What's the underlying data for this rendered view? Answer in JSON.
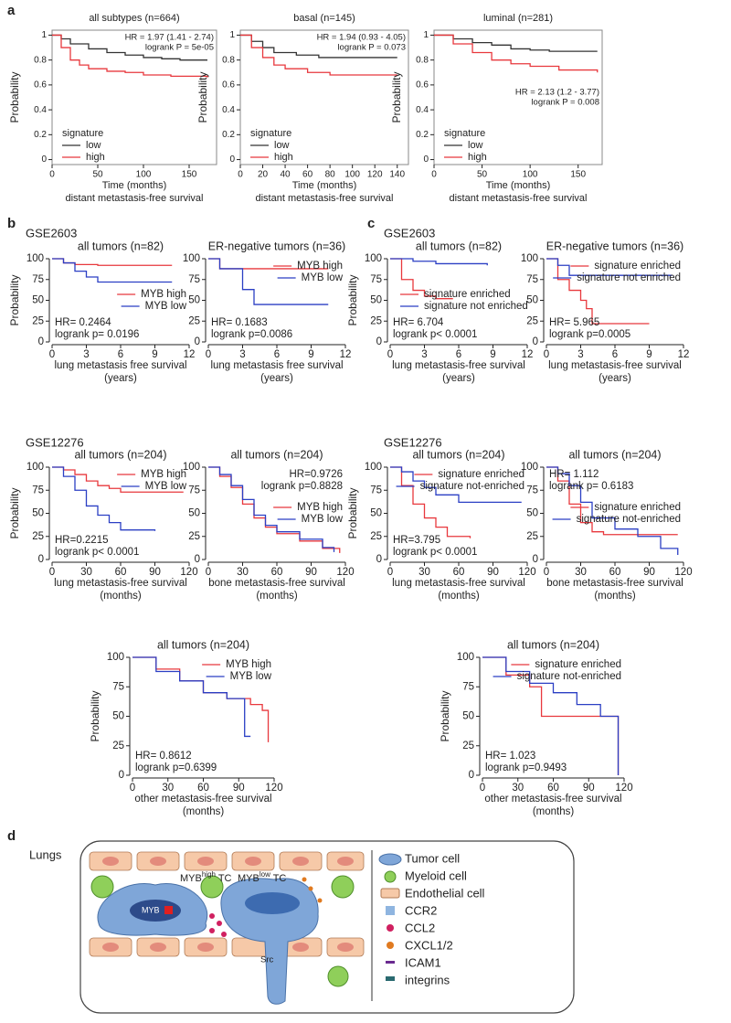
{
  "figure": {
    "panels": [
      "a",
      "b",
      "c",
      "d"
    ],
    "groups": [
      "GSE2603",
      "GSE12276",
      "GSE2603",
      "GSE12276"
    ]
  },
  "chart_data": [
    {
      "type": "line",
      "drawstyle": "steps-post",
      "frame": true,
      "title": "all subtypes (n=664)",
      "xlabel": [
        "Time (months)",
        "distant metastasis-free survival"
      ],
      "ylabel": "Probability",
      "xlim": [
        0,
        180
      ],
      "ylim": [
        -0.04,
        1.04
      ],
      "xticks": [
        0,
        50,
        100,
        150
      ],
      "yticks": [
        0,
        0.2,
        0.4,
        0.6,
        0.8,
        1
      ],
      "annotations": [
        "HR = 1.97 (1.41 - 2.74)",
        "logrank P = 5e-05"
      ],
      "annotation_loc": "upper right",
      "legend_title": "signature",
      "legend_loc": "lower left",
      "series": [
        {
          "name": "low",
          "color": "#333333",
          "x": [
            0,
            10,
            20,
            40,
            60,
            80,
            100,
            120,
            140,
            170
          ],
          "values": [
            1,
            0.97,
            0.93,
            0.89,
            0.86,
            0.84,
            0.82,
            0.81,
            0.8,
            0.8
          ]
        },
        {
          "name": "high",
          "color": "#e8383d",
          "x": [
            0,
            10,
            20,
            30,
            40,
            60,
            80,
            100,
            130,
            170
          ],
          "values": [
            1,
            0.9,
            0.8,
            0.76,
            0.73,
            0.71,
            0.7,
            0.68,
            0.67,
            0.66
          ]
        }
      ]
    },
    {
      "type": "line",
      "drawstyle": "steps-post",
      "frame": true,
      "title": "basal (n=145)",
      "xlabel": [
        "Time (months)",
        "distant metastasis-free survival"
      ],
      "ylabel": "Probability",
      "xlim": [
        0,
        150
      ],
      "ylim": [
        -0.04,
        1.04
      ],
      "xticks": [
        0,
        20,
        40,
        60,
        80,
        100,
        120,
        140
      ],
      "yticks": [
        0,
        0.2,
        0.4,
        0.6,
        0.8,
        1
      ],
      "annotations": [
        "HR = 1.94 (0.93 - 4.05)",
        "logrank P = 0.073"
      ],
      "annotation_loc": "upper right",
      "legend_title": "signature",
      "legend_loc": "lower left",
      "series": [
        {
          "name": "low",
          "color": "#333333",
          "x": [
            0,
            10,
            20,
            30,
            50,
            70,
            100,
            140
          ],
          "values": [
            1,
            0.95,
            0.9,
            0.86,
            0.84,
            0.82,
            0.82,
            0.82
          ]
        },
        {
          "name": "high",
          "color": "#e8383d",
          "x": [
            0,
            10,
            20,
            30,
            40,
            60,
            80,
            140
          ],
          "values": [
            1,
            0.9,
            0.82,
            0.76,
            0.73,
            0.7,
            0.68,
            0.68
          ]
        }
      ]
    },
    {
      "type": "line",
      "drawstyle": "steps-post",
      "frame": true,
      "title": "luminal (n=281)",
      "xlabel": [
        "Time (months)",
        "distant metastasis-free survival"
      ],
      "ylabel": "Probability",
      "xlim": [
        0,
        175
      ],
      "ylim": [
        -0.04,
        1.04
      ],
      "xticks": [
        0,
        50,
        100,
        150
      ],
      "yticks": [
        0,
        0.2,
        0.4,
        0.6,
        0.8,
        1
      ],
      "annotations": [
        "HR = 2.13 (1.2 - 3.77)",
        "logrank P = 0.008"
      ],
      "annotation_loc": "center right",
      "legend_title": "signature",
      "legend_loc": "lower left",
      "series": [
        {
          "name": "low",
          "color": "#333333",
          "x": [
            0,
            20,
            40,
            60,
            80,
            100,
            120,
            170
          ],
          "values": [
            1,
            0.97,
            0.94,
            0.92,
            0.89,
            0.88,
            0.87,
            0.87
          ]
        },
        {
          "name": "high",
          "color": "#e8383d",
          "x": [
            0,
            20,
            40,
            60,
            80,
            100,
            130,
            170
          ],
          "values": [
            1,
            0.93,
            0.86,
            0.8,
            0.77,
            0.75,
            0.72,
            0.7
          ]
        }
      ]
    },
    {
      "type": "line",
      "drawstyle": "steps-post",
      "title": "all tumors (n=82)",
      "xlabel": [
        "lung metastasis free survival",
        "(years)"
      ],
      "ylabel": "Probability",
      "xlim": [
        0,
        12
      ],
      "ylim": [
        0,
        100
      ],
      "xticks": [
        0,
        3,
        6,
        9,
        12
      ],
      "yticks": [
        0,
        25,
        50,
        75,
        100
      ],
      "annotations": [
        "HR= 0.2464",
        "logrank  p= 0.0196"
      ],
      "annotation_loc": "lower left",
      "legend_loc": "center right",
      "series": [
        {
          "name": "MYB high",
          "color": "#e8383d",
          "x": [
            0,
            1,
            2,
            4,
            10.5
          ],
          "values": [
            100,
            95,
            93,
            92,
            92
          ]
        },
        {
          "name": "MYB low",
          "color": "#2b3fc4",
          "x": [
            0,
            1,
            2,
            3,
            4,
            10.5
          ],
          "values": [
            100,
            95,
            85,
            78,
            72,
            72
          ]
        }
      ]
    },
    {
      "type": "line",
      "drawstyle": "steps-post",
      "title": "ER-negative tumors (n=36)",
      "xlabel": [
        "lung metastasis free survival",
        "(years)"
      ],
      "ylabel": "",
      "xlim": [
        0,
        12
      ],
      "ylim": [
        0,
        100
      ],
      "xticks": [
        0,
        3,
        6,
        9,
        12
      ],
      "yticks": [
        0,
        25,
        50,
        75,
        100
      ],
      "annotations": [
        "HR= 0.1683",
        "logrank p=0.0086"
      ],
      "annotation_loc": "lower left",
      "legend_loc": "upper right",
      "series": [
        {
          "name": "MYB high",
          "color": "#e8383d",
          "x": [
            0,
            1,
            10.5
          ],
          "values": [
            100,
            88,
            88
          ]
        },
        {
          "name": "MYB low",
          "color": "#2b3fc4",
          "x": [
            0,
            1,
            3,
            4,
            10.5
          ],
          "values": [
            100,
            88,
            63,
            45,
            45
          ]
        }
      ]
    },
    {
      "type": "line",
      "drawstyle": "steps-post",
      "title": "all tumors (n=82)",
      "xlabel": [
        "lung metastasis-free survival",
        "(years)"
      ],
      "ylabel": "Probability",
      "xlim": [
        0,
        12
      ],
      "ylim": [
        0,
        100
      ],
      "xticks": [
        0,
        3,
        6,
        9,
        12
      ],
      "yticks": [
        0,
        25,
        50,
        75,
        100
      ],
      "annotations": [
        "HR= 6.704",
        "logrank p< 0.0001"
      ],
      "annotation_loc": "lower left",
      "legend_loc": "center left",
      "series": [
        {
          "name": "signature enriched",
          "color": "#e8383d",
          "x": [
            0,
            1,
            2,
            3,
            4,
            5.5
          ],
          "values": [
            100,
            75,
            62,
            55,
            52,
            52
          ]
        },
        {
          "name": "signature not enriched",
          "color": "#2b3fc4",
          "x": [
            0,
            2,
            4,
            8.5
          ],
          "values": [
            100,
            97,
            94,
            92
          ]
        }
      ]
    },
    {
      "type": "line",
      "drawstyle": "steps-post",
      "title": "ER-negative tumors (n=36)",
      "xlabel": [
        "lung metastasis-free survival",
        "(years)"
      ],
      "ylabel": "",
      "xlim": [
        0,
        12
      ],
      "ylim": [
        0,
        100
      ],
      "xticks": [
        0,
        3,
        6,
        9,
        12
      ],
      "yticks": [
        0,
        25,
        50,
        75,
        100
      ],
      "annotations": [
        "HR= 5.965",
        "logrank p=0.0005"
      ],
      "annotation_loc": "lower left",
      "legend_loc": "upper right",
      "series": [
        {
          "name": "signature enriched",
          "color": "#e8383d",
          "x": [
            0,
            1,
            2,
            3,
            3.5,
            4,
            9
          ],
          "values": [
            100,
            75,
            62,
            50,
            40,
            22,
            22
          ]
        },
        {
          "name": "signature not enriched",
          "color": "#2b3fc4",
          "x": [
            0,
            1,
            2,
            11
          ],
          "values": [
            100,
            92,
            80,
            80
          ]
        }
      ]
    },
    {
      "type": "line",
      "drawstyle": "steps-post",
      "title": "all tumors (n=204)",
      "xlabel": [
        "lung metastasis-free survival",
        "(months)"
      ],
      "ylabel": "Probability",
      "xlim": [
        0,
        120
      ],
      "ylim": [
        0,
        100
      ],
      "xticks": [
        0,
        30,
        60,
        90,
        120
      ],
      "yticks": [
        0,
        25,
        50,
        75,
        100
      ],
      "annotations": [
        "HR=0.2215",
        "logrank p< 0.0001"
      ],
      "annotation_loc": "lower left",
      "legend_loc": "upper right",
      "series": [
        {
          "name": "MYB high",
          "color": "#e8383d",
          "x": [
            0,
            10,
            20,
            30,
            40,
            50,
            60,
            115
          ],
          "values": [
            100,
            97,
            92,
            85,
            80,
            77,
            73,
            73
          ]
        },
        {
          "name": "MYB low",
          "color": "#2b3fc4",
          "x": [
            0,
            10,
            20,
            30,
            40,
            50,
            60,
            90
          ],
          "values": [
            100,
            90,
            75,
            58,
            48,
            40,
            32,
            31
          ]
        }
      ]
    },
    {
      "type": "line",
      "drawstyle": "steps-post",
      "title": "all tumors (n=204)",
      "xlabel": [
        "bone metastasis-free survival",
        "(months)"
      ],
      "ylabel": "",
      "xlim": [
        0,
        120
      ],
      "ylim": [
        0,
        100
      ],
      "xticks": [
        0,
        30,
        60,
        90,
        120
      ],
      "yticks": [
        0,
        25,
        50,
        75,
        100
      ],
      "annotations": [
        "HR=0.9726",
        "logrank p=0.8828"
      ],
      "annotation_loc": "upper right",
      "legend_loc": "center right",
      "series": [
        {
          "name": "MYB high",
          "color": "#e8383d",
          "x": [
            0,
            10,
            20,
            30,
            40,
            50,
            60,
            80,
            100,
            115
          ],
          "values": [
            100,
            90,
            78,
            60,
            45,
            35,
            28,
            20,
            12,
            7
          ]
        },
        {
          "name": "MYB low",
          "color": "#2b3fc4",
          "x": [
            0,
            10,
            20,
            30,
            40,
            50,
            60,
            80,
            100,
            110
          ],
          "values": [
            100,
            92,
            80,
            65,
            48,
            37,
            30,
            22,
            13,
            8
          ]
        }
      ]
    },
    {
      "type": "line",
      "drawstyle": "steps-post",
      "title": "all tumors (n=204)",
      "xlabel": [
        "lung metastasis-free survival",
        "(months)"
      ],
      "ylabel": "Probability",
      "xlim": [
        0,
        120
      ],
      "ylim": [
        0,
        100
      ],
      "xticks": [
        0,
        30,
        60,
        90,
        120
      ],
      "yticks": [
        0,
        25,
        50,
        75,
        100
      ],
      "annotations": [
        "HR=3.795",
        "logrank p< 0.0001"
      ],
      "annotation_loc": "lower left",
      "legend_loc": "upper right",
      "series": [
        {
          "name": "signature enriched",
          "color": "#e8383d",
          "x": [
            0,
            10,
            20,
            30,
            40,
            50,
            70
          ],
          "values": [
            100,
            80,
            60,
            45,
            35,
            25,
            23
          ]
        },
        {
          "name": "signature not-enriched",
          "color": "#2b3fc4",
          "x": [
            0,
            10,
            20,
            30,
            40,
            60,
            115
          ],
          "values": [
            100,
            95,
            85,
            78,
            70,
            62,
            62
          ]
        }
      ]
    },
    {
      "type": "line",
      "drawstyle": "steps-post",
      "title": "all tumors (n=204)",
      "xlabel": [
        "bone metastasis-free survival",
        "(months)"
      ],
      "ylabel": "",
      "xlim": [
        0,
        120
      ],
      "ylim": [
        0,
        100
      ],
      "xticks": [
        0,
        30,
        60,
        90,
        120
      ],
      "yticks": [
        0,
        25,
        50,
        75,
        100
      ],
      "annotations": [
        "HR= 1.112",
        "logrank p= 0.6183"
      ],
      "annotation_loc": "upper left",
      "legend_loc": "center right",
      "series": [
        {
          "name": "signature enriched",
          "color": "#e8383d",
          "x": [
            0,
            10,
            20,
            30,
            40,
            50,
            115
          ],
          "values": [
            100,
            85,
            60,
            40,
            30,
            27,
            27
          ]
        },
        {
          "name": "signature not-enriched",
          "color": "#2b3fc4",
          "x": [
            0,
            10,
            20,
            30,
            40,
            60,
            80,
            100,
            115
          ],
          "values": [
            100,
            93,
            80,
            62,
            45,
            33,
            25,
            12,
            5
          ]
        }
      ]
    },
    {
      "type": "line",
      "drawstyle": "steps-post",
      "title": "all tumors (n=204)",
      "xlabel": [
        "other metastasis-free survival",
        "(months)"
      ],
      "ylabel": "Probability",
      "xlim": [
        0,
        120
      ],
      "ylim": [
        0,
        100
      ],
      "xticks": [
        0,
        30,
        60,
        90,
        120
      ],
      "yticks": [
        0,
        25,
        50,
        75,
        100
      ],
      "annotations": [
        "HR= 0.8612",
        "logrank p=0.6399"
      ],
      "annotation_loc": "lower left",
      "legend_loc": "upper right",
      "series": [
        {
          "name": "MYB high",
          "color": "#e8383d",
          "x": [
            0,
            20,
            40,
            60,
            80,
            100,
            110,
            115
          ],
          "values": [
            100,
            90,
            80,
            70,
            65,
            60,
            55,
            28
          ]
        },
        {
          "name": "MYB low",
          "color": "#2b3fc4",
          "x": [
            0,
            20,
            40,
            60,
            80,
            95,
            100
          ],
          "values": [
            100,
            88,
            80,
            70,
            65,
            33,
            33
          ]
        }
      ]
    },
    {
      "type": "line",
      "drawstyle": "steps-post",
      "title": "all tumors (n=204)",
      "xlabel": [
        "other metastasis-free survival",
        "(months)"
      ],
      "ylabel": "Probability",
      "xlim": [
        0,
        120
      ],
      "ylim": [
        0,
        100
      ],
      "xticks": [
        0,
        30,
        60,
        90,
        120
      ],
      "yticks": [
        0,
        25,
        50,
        75,
        100
      ],
      "annotations": [
        "HR= 1.023",
        "logrank p=0.9493"
      ],
      "annotation_loc": "lower left",
      "legend_loc": "upper right",
      "series": [
        {
          "name": "signature enriched",
          "color": "#e8383d",
          "x": [
            0,
            20,
            40,
            50,
            60,
            80,
            100,
            115
          ],
          "values": [
            100,
            85,
            75,
            50,
            50,
            50,
            50,
            0
          ]
        },
        {
          "name": "signature not-enriched",
          "color": "#2b3fc4",
          "x": [
            0,
            20,
            40,
            60,
            80,
            100,
            115
          ],
          "values": [
            100,
            88,
            78,
            70,
            60,
            50,
            0
          ]
        }
      ]
    }
  ],
  "diagram": {
    "organ": "Lungs",
    "cells": [
      {
        "gene": "MYB",
        "level": "high",
        "suffix": " TC"
      },
      {
        "gene": "MYB",
        "level": "low",
        "suffix": " TC"
      }
    ],
    "nucleus_label": "MYB",
    "kinase": "Src",
    "legend": [
      "Tumor cell",
      "Myeloid cell",
      "Endothelial cell",
      "CCR2",
      "CCL2",
      "CXCL1/2",
      "ICAM1",
      "integrins"
    ]
  }
}
